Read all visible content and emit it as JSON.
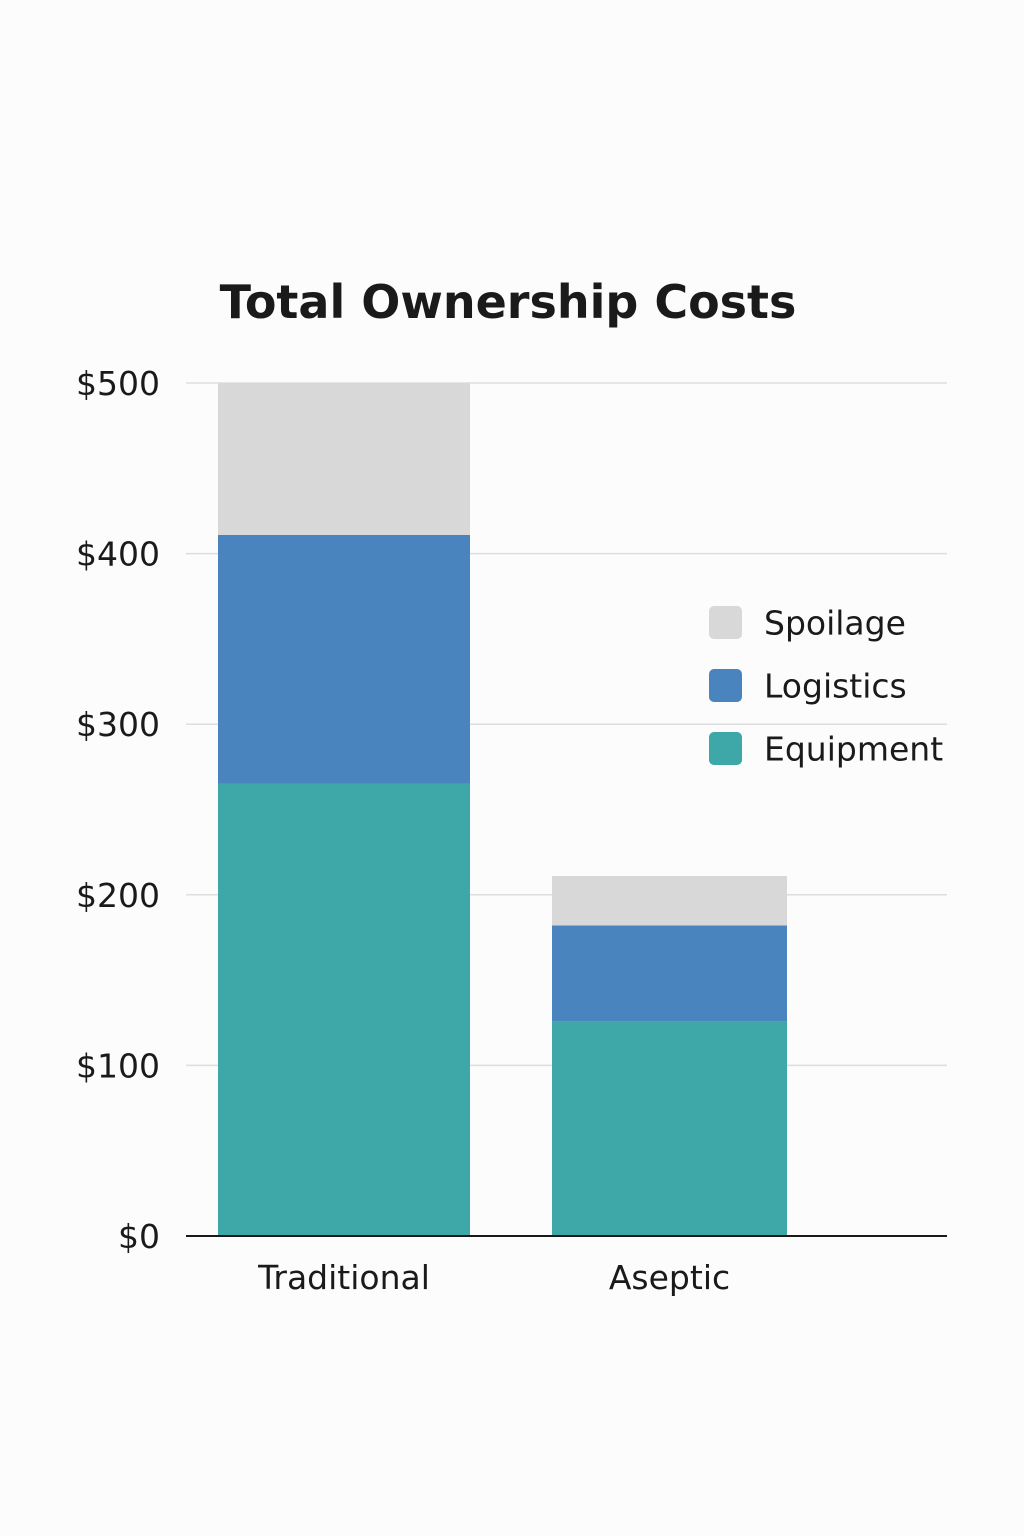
{
  "chart_data": {
    "type": "bar",
    "stacked": true,
    "title": "Total Ownership Costs",
    "xlabel": "",
    "ylabel": "",
    "categories": [
      "Traditional",
      "Aseptic"
    ],
    "series": [
      {
        "name": "Equipment",
        "values": [
          265,
          126
        ],
        "color": "#3ea8a8"
      },
      {
        "name": "Logistics",
        "values": [
          146,
          56
        ],
        "color": "#4a84be"
      },
      {
        "name": "Spoilage",
        "values": [
          89,
          29
        ],
        "color": "#d8d8d8"
      }
    ],
    "ylim": [
      0,
      500
    ],
    "yticks": [
      0,
      100,
      200,
      300,
      400,
      500
    ],
    "ytick_labels": [
      "$0",
      "$100",
      "$200",
      "$300",
      "$400",
      "$500"
    ],
    "grid": true,
    "legend": {
      "position": "right",
      "order": [
        "Spoilage",
        "Logistics",
        "Equipment"
      ]
    }
  }
}
